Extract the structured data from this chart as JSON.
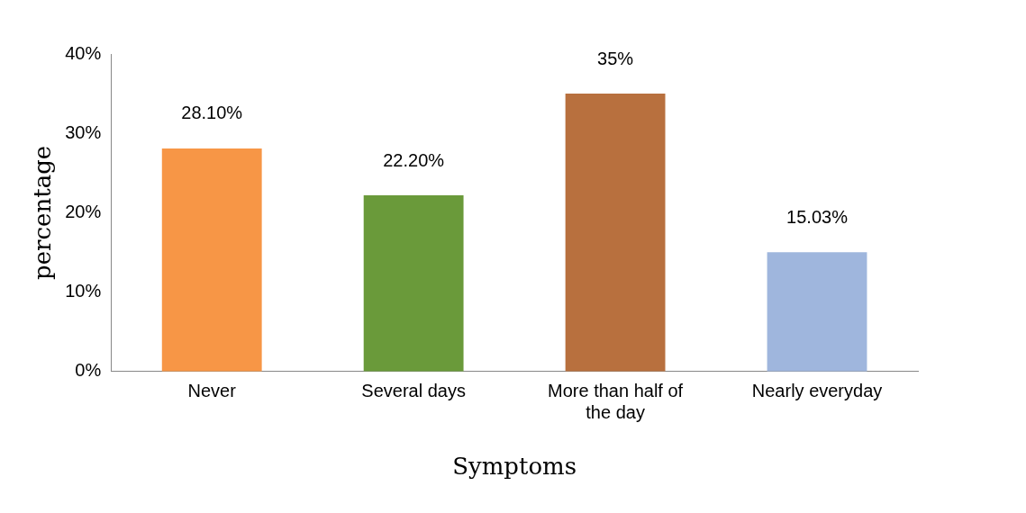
{
  "chart_data": {
    "type": "bar",
    "xlabel": "Symptoms",
    "ylabel": "percentage",
    "categories": [
      "Never",
      "Several days",
      "More than half of the day",
      "Nearly everyday"
    ],
    "values": [
      28.1,
      22.2,
      35,
      15.03
    ],
    "colors": [
      "#f79646",
      "#6a9a3a",
      "#b8703e",
      "#9fb6dd"
    ],
    "value_labels": [
      "28.10%",
      "22.20%",
      "35%",
      "15.03%"
    ],
    "ylim": [
      0,
      40
    ],
    "yticks": [
      {
        "value": 0,
        "label": "0%"
      },
      {
        "value": 10,
        "label": "10%"
      },
      {
        "value": 20,
        "label": "20%"
      },
      {
        "value": 30,
        "label": "30%"
      },
      {
        "value": 40,
        "label": "40%"
      }
    ],
    "grid": false,
    "legend": false
  }
}
